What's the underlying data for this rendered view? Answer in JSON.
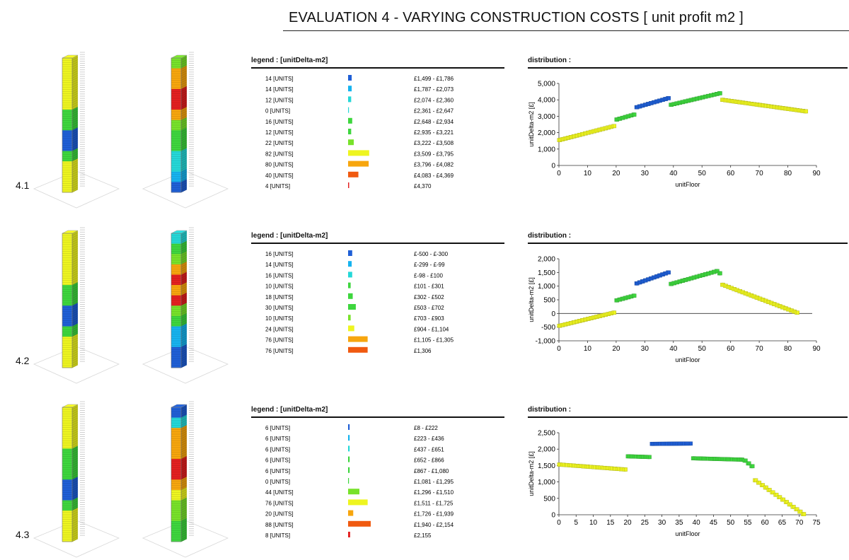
{
  "page_title": "EVALUATION 4 - VARYING CONSTRUCTION COSTS  [ unit profit m2 ]",
  "colors": {
    "blue": "#1f5fd6",
    "cyan": "#16b3ef",
    "aqua": "#25d8d8",
    "green": "#3ed63e",
    "lime": "#78e22a",
    "yellow": "#eef520",
    "orange": "#f7a60e",
    "red_orange": "#f05a10",
    "red": "#e32020"
  },
  "evaluations": [
    {
      "label": "4.1",
      "tower_a_bands": [
        "yellow",
        "yellow",
        "yellow",
        "yellow",
        "yellow",
        "green",
        "green",
        "blue",
        "blue",
        "green",
        "yellow",
        "yellow",
        "yellow"
      ],
      "tower_b_bands": [
        "lime",
        "orange",
        "orange",
        "red",
        "red",
        "orange",
        "lime",
        "green",
        "green",
        "aqua",
        "aqua",
        "cyan",
        "blue"
      ],
      "legend": {
        "header": "legend : [unitDelta-m2]",
        "rows": [
          {
            "units": "14 [UNITS]",
            "range": "£1,499 - £1,786",
            "count": 14,
            "color": "blue"
          },
          {
            "units": "14 [UNITS]",
            "range": "£1,787 - £2,073",
            "count": 14,
            "color": "cyan"
          },
          {
            "units": "12 [UNITS]",
            "range": "£2,074 - £2,360",
            "count": 12,
            "color": "aqua"
          },
          {
            "units": "0 [UNITS]",
            "range": "£2,361 - £2,647",
            "count": 0,
            "color": "aqua"
          },
          {
            "units": "16 [UNITS]",
            "range": "£2,648 - £2,934",
            "count": 16,
            "color": "green"
          },
          {
            "units": "12 [UNITS]",
            "range": "£2,935 - £3,221",
            "count": 12,
            "color": "green"
          },
          {
            "units": "22 [UNITS]",
            "range": "£3,222 - £3,508",
            "count": 22,
            "color": "lime"
          },
          {
            "units": "82 [UNITS]",
            "range": "£3,509 - £3,795",
            "count": 82,
            "color": "yellow"
          },
          {
            "units": "80 [UNITS]",
            "range": "£3,796 - £4,082",
            "count": 80,
            "color": "orange"
          },
          {
            "units": "40 [UNITS]",
            "range": "£4,083 - £4,369",
            "count": 40,
            "color": "red_orange"
          },
          {
            "units": "4 [UNITS]",
            "range": "£4,370",
            "count": 4,
            "color": "red"
          }
        ]
      },
      "chart_header": "distribution :",
      "chart_data": {
        "type": "scatter",
        "xlabel": "unitFloor",
        "ylabel": "unitDelta-m2 [£]",
        "xlim": [
          0,
          90
        ],
        "ylim": [
          0,
          5000
        ],
        "xticks": [
          "0",
          "10",
          "20",
          "30",
          "40",
          "50",
          "60",
          "70",
          "80",
          "90"
        ],
        "xtick_values": [
          0,
          10,
          20,
          30,
          40,
          50,
          60,
          70,
          80,
          90
        ],
        "yticks": [
          "0",
          "1,000",
          "2,000",
          "3,000",
          "4,000",
          "5,000"
        ],
        "ytick_values": [
          0,
          1000,
          2000,
          3000,
          4000,
          5000
        ],
        "zero_line": false,
        "segments": [
          {
            "x_start": 0,
            "x_end": 19,
            "y_start": 1550,
            "y_end": 2400,
            "color": "yellow"
          },
          {
            "x_start": 20,
            "x_end": 26,
            "y_start": 2800,
            "y_end": 3100,
            "color": "green"
          },
          {
            "x_start": 27,
            "x_end": 38,
            "y_start": 3550,
            "y_end": 4100,
            "color": "blue"
          },
          {
            "x_start": 39,
            "x_end": 56,
            "y_start": 3700,
            "y_end": 4400,
            "color": "green"
          },
          {
            "x_start": 57,
            "x_end": 86,
            "y_start": 4000,
            "y_end": 3300,
            "color": "yellow"
          }
        ]
      }
    },
    {
      "label": "4.2",
      "tower_a_bands": [
        "yellow",
        "yellow",
        "yellow",
        "yellow",
        "yellow",
        "green",
        "green",
        "blue",
        "blue",
        "green",
        "yellow",
        "yellow",
        "yellow"
      ],
      "tower_b_bands": [
        "aqua",
        "green",
        "lime",
        "orange",
        "red",
        "orange",
        "red",
        "lime",
        "green",
        "cyan",
        "cyan",
        "blue",
        "blue"
      ],
      "legend": {
        "header": "legend : [unitDelta-m2]",
        "rows": [
          {
            "units": "16 [UNITS]",
            "range": "£-500 - £-300",
            "count": 16,
            "color": "blue"
          },
          {
            "units": "14 [UNITS]",
            "range": "£-299 - £-99",
            "count": 14,
            "color": "cyan"
          },
          {
            "units": "16 [UNITS]",
            "range": "£-98 - £100",
            "count": 16,
            "color": "aqua"
          },
          {
            "units": "10 [UNITS]",
            "range": "£101 - £301",
            "count": 10,
            "color": "green"
          },
          {
            "units": "18 [UNITS]",
            "range": "£302 - £502",
            "count": 18,
            "color": "green"
          },
          {
            "units": "30 [UNITS]",
            "range": "£503 - £702",
            "count": 30,
            "color": "green"
          },
          {
            "units": "10 [UNITS]",
            "range": "£703 - £903",
            "count": 10,
            "color": "lime"
          },
          {
            "units": "24 [UNITS]",
            "range": "£904 - £1,104",
            "count": 24,
            "color": "yellow"
          },
          {
            "units": "76 [UNITS]",
            "range": "£1,105 - £1,305",
            "count": 76,
            "color": "orange"
          },
          {
            "units": "76 [UNITS]",
            "range": "£1,306",
            "count": 76,
            "color": "red_orange"
          }
        ]
      },
      "chart_header": "distribution :",
      "chart_data": {
        "type": "scatter",
        "xlabel": "unitFloor",
        "ylabel": "unitDelta-m2 [£]",
        "xlim": [
          0,
          90
        ],
        "ylim": [
          -1000,
          2000
        ],
        "xticks": [
          "0",
          "10",
          "20",
          "30",
          "40",
          "50",
          "60",
          "70",
          "80",
          "90"
        ],
        "xtick_values": [
          0,
          10,
          20,
          30,
          40,
          50,
          60,
          70,
          80,
          90
        ],
        "yticks": [
          "-1,000",
          "-500",
          "0",
          "500",
          "1,000",
          "1,500",
          "2,000"
        ],
        "ytick_values": [
          -1000,
          -500,
          0,
          500,
          1000,
          1500,
          2000
        ],
        "zero_line": true,
        "segments": [
          {
            "x_start": 0,
            "x_end": 19,
            "y_start": -450,
            "y_end": 30,
            "color": "yellow"
          },
          {
            "x_start": 20,
            "x_end": 26,
            "y_start": 480,
            "y_end": 650,
            "color": "green"
          },
          {
            "x_start": 27,
            "x_end": 38,
            "y_start": 1100,
            "y_end": 1500,
            "color": "blue"
          },
          {
            "x_start": 39,
            "x_end": 55,
            "y_start": 1080,
            "y_end": 1550,
            "color": "green"
          },
          {
            "x_start": 56,
            "x_end": 56,
            "y_start": 1470,
            "y_end": 1470,
            "color": "green"
          },
          {
            "x_start": 57,
            "x_end": 83,
            "y_start": 1050,
            "y_end": 30,
            "color": "yellow"
          }
        ]
      }
    },
    {
      "label": "4.3",
      "tower_a_bands": [
        "yellow",
        "yellow",
        "yellow",
        "yellow",
        "green",
        "green",
        "green",
        "blue",
        "blue",
        "green",
        "yellow",
        "yellow",
        "yellow"
      ],
      "tower_b_bands": [
        "blue",
        "aqua",
        "orange",
        "orange",
        "orange",
        "red",
        "red",
        "orange",
        "yellow",
        "lime",
        "lime",
        "green",
        "green"
      ],
      "legend": {
        "header": "legend : [unitDelta-m2]",
        "rows": [
          {
            "units": "6 [UNITS]",
            "range": "£8 - £222",
            "count": 6,
            "color": "blue"
          },
          {
            "units": "6 [UNITS]",
            "range": "£223 - £436",
            "count": 6,
            "color": "cyan"
          },
          {
            "units": "6 [UNITS]",
            "range": "£437 - £651",
            "count": 6,
            "color": "aqua"
          },
          {
            "units": "6 [UNITS]",
            "range": "£652 - £866",
            "count": 6,
            "color": "green"
          },
          {
            "units": "6 [UNITS]",
            "range": "£867 - £1,080",
            "count": 6,
            "color": "green"
          },
          {
            "units": "0 [UNITS]",
            "range": "£1,081 - £1,295",
            "count": 0,
            "color": "green"
          },
          {
            "units": "44 [UNITS]",
            "range": "£1,296 - £1,510",
            "count": 44,
            "color": "lime"
          },
          {
            "units": "76 [UNITS]",
            "range": "£1,511 - £1,725",
            "count": 76,
            "color": "yellow"
          },
          {
            "units": "20 [UNITS]",
            "range": "£1,726 - £1,939",
            "count": 20,
            "color": "orange"
          },
          {
            "units": "88 [UNITS]",
            "range": "£1,940 - £2,154",
            "count": 88,
            "color": "red_orange"
          },
          {
            "units": "8 [UNITS]",
            "range": "£2,155",
            "count": 8,
            "color": "red"
          }
        ]
      },
      "chart_header": "distribution :",
      "chart_data": {
        "type": "scatter",
        "xlabel": "unitFloor",
        "ylabel": "unitDelta-m2 [£]",
        "xlim": [
          0,
          75
        ],
        "ylim": [
          0,
          2500
        ],
        "xticks": [
          "0",
          "5",
          "10",
          "15",
          "20",
          "25",
          "30",
          "35",
          "40",
          "45",
          "50",
          "55",
          "60",
          "65",
          "70",
          "75"
        ],
        "xtick_values": [
          0,
          5,
          10,
          15,
          20,
          25,
          30,
          35,
          40,
          45,
          50,
          55,
          60,
          65,
          70,
          75
        ],
        "yticks": [
          "0",
          "500",
          "1,000",
          "1,500",
          "2,000",
          "2,500"
        ],
        "ytick_values": [
          0,
          500,
          1000,
          1500,
          2000,
          2500
        ],
        "zero_line": false,
        "segments": [
          {
            "x_start": 0,
            "x_end": 19,
            "y_start": 1530,
            "y_end": 1380,
            "color": "yellow"
          },
          {
            "x_start": 20,
            "x_end": 26,
            "y_start": 1780,
            "y_end": 1760,
            "color": "green"
          },
          {
            "x_start": 27,
            "x_end": 38,
            "y_start": 2160,
            "y_end": 2170,
            "color": "blue"
          },
          {
            "x_start": 39,
            "x_end": 53,
            "y_start": 1720,
            "y_end": 1680,
            "color": "green"
          },
          {
            "x_start": 54,
            "x_end": 56,
            "y_start": 1650,
            "y_end": 1480,
            "color": "green"
          },
          {
            "x_start": 57,
            "x_end": 71,
            "y_start": 1050,
            "y_end": 20,
            "color": "yellow"
          }
        ]
      }
    }
  ]
}
